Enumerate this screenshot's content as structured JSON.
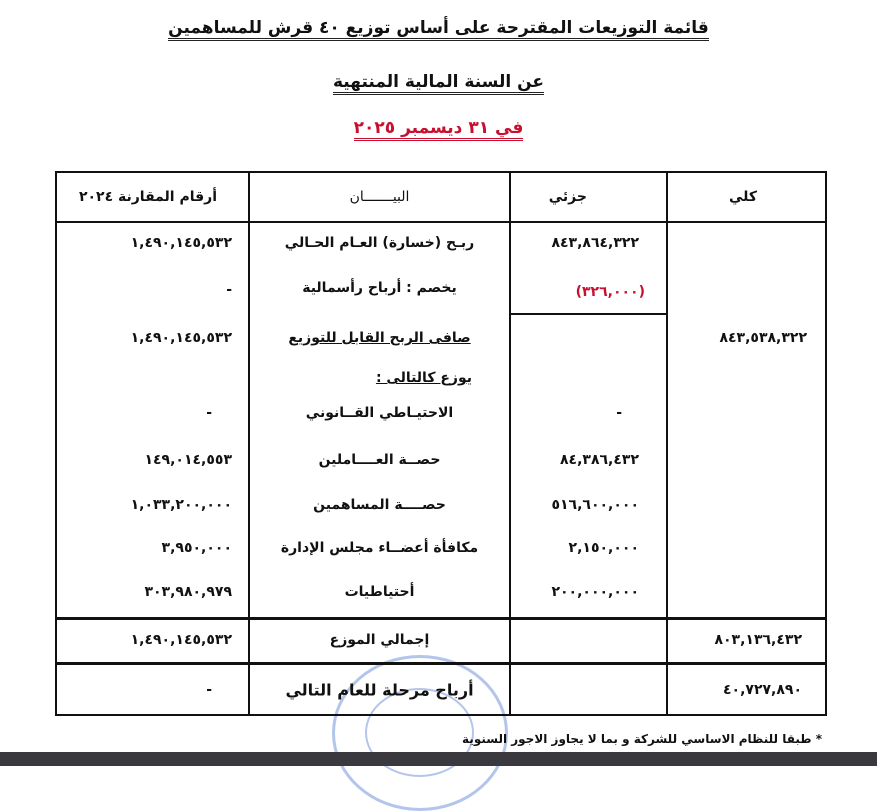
{
  "header": {
    "title": "قائمة التوزيعات المقترحة على أساس توزيع ٤٠ قرش للمساهمين",
    "subtitle": "عن السنة المالية المنتهية",
    "date": "في ٣١ ديسمبر ٢٠٢٥",
    "date_color": "#c8102e"
  },
  "table": {
    "columns": {
      "total": "كلي",
      "partial": "جزئي",
      "description": "البيـــــــان",
      "comparative": "أرقام المقارنة ٢٠٢٤"
    },
    "rows": [
      {
        "description": "ربـح (خسارة) العـام الحـالي",
        "partial": "٨٤٣,٨٦٤,٣٢٢",
        "comparative": "١,٤٩٠,١٤٥,٥٣٢"
      },
      {
        "description": "يخصم : أرباح رأسمالية",
        "partial": "(٣٢٦,٠٠٠)",
        "comparative": "-"
      },
      {
        "description": "صافى الربح القابل للتوزيع",
        "total": "٨٤٣,٥٣٨,٣٢٢",
        "comparative": "١,٤٩٠,١٤٥,٥٣٢"
      },
      {
        "description": "يوزع كالتالى :"
      },
      {
        "description": "الاحتيـاطي القــانوني",
        "partial": "-",
        "comparative": "-"
      },
      {
        "description": "حصــة العــــاملين",
        "partial": "٨٤,٣٨٦,٤٣٢",
        "comparative": "١٤٩,٠١٤,٥٥٣"
      },
      {
        "description": "حصــــة المساهمين",
        "partial": "٥١٦,٦٠٠,٠٠٠",
        "comparative": "١,٠٣٣,٢٠٠,٠٠٠"
      },
      {
        "description": "مكافأة أعضــاء مجلس الإدارة",
        "partial": "٢,١٥٠,٠٠٠",
        "comparative": "٣,٩٥٠,٠٠٠"
      },
      {
        "description": "أحتياطيات",
        "partial": "٢٠٠,٠٠٠,٠٠٠",
        "comparative": "٣٠٣,٩٨٠,٩٧٩"
      },
      {
        "description": "إجمالي الموزع",
        "total": "٨٠٣,١٣٦,٤٣٢",
        "comparative": "١,٤٩٠,١٤٥,٥٣٢"
      },
      {
        "description": "أرباح مرحلة للعام التالي",
        "total": "٤٠,٧٢٧,٨٩٠",
        "comparative": "-"
      }
    ]
  },
  "footnote": "* طبقا للنظام الاساسي للشركة و بما لا يجاوز الاجور السنوية"
}
